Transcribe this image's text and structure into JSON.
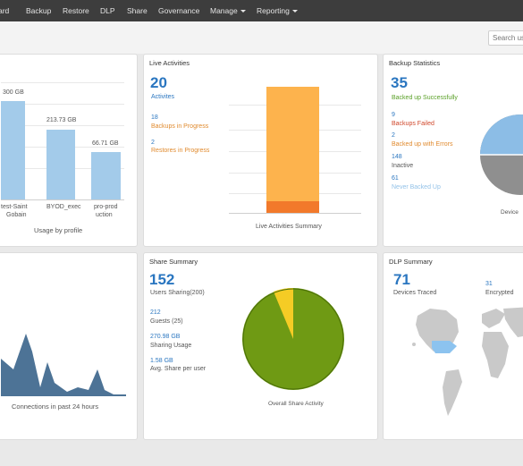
{
  "nav": {
    "items": [
      {
        "label": "ard"
      },
      {
        "label": "Backup"
      },
      {
        "label": "Restore"
      },
      {
        "label": "DLP"
      },
      {
        "label": "Share"
      },
      {
        "label": "Governance"
      },
      {
        "label": "Manage"
      },
      {
        "label": "Reporting"
      }
    ]
  },
  "search": {
    "placeholder": "Search us"
  },
  "usage": {
    "caption": "Usage by profile",
    "bars": [
      {
        "value_label": "300 GB",
        "name1": "test-Saint",
        "name2": "Gobain"
      },
      {
        "value_label": "213.73 GB",
        "name1": "BYOD_exec",
        "name2": ""
      },
      {
        "value_label": "66.71 GB",
        "name1": "pro-prod",
        "name2": "uction"
      }
    ]
  },
  "live": {
    "title": "Live Activities",
    "count": "20",
    "count_label": "Activites",
    "backups_num": "18",
    "backups_label": "Backups in Progress",
    "restores_num": "2",
    "restores_label": "Restores in Progress",
    "caption": "Live Activities Summary"
  },
  "backup": {
    "title": "Backup Statistics",
    "count": "35",
    "success_label": "Backed up Successfully",
    "failed_num": "9",
    "failed_label": "Backups Failed",
    "errors_num": "2",
    "errors_label": "Backed up with Errors",
    "inactive_num": "148",
    "inactive_label": "Inactive",
    "never_num": "61",
    "never_label": "Never Backed Up",
    "device_label": "Device"
  },
  "connections": {
    "caption": "Connections in past 24 hours"
  },
  "share": {
    "title": "Share Summary",
    "users_num": "152",
    "users_label": "Users Sharing(200)",
    "guests_num": "212",
    "guests_label": "Guests (25)",
    "usage_num": "270.98 GB",
    "usage_label": "Sharing Usage",
    "avg_num": "1.58 GB",
    "avg_label": "Avg. Share per user",
    "caption": "Overall Share Activity"
  },
  "dlp": {
    "title": "DLP Summary",
    "devices_num": "71",
    "devices_label": "Devices Traced",
    "encrypted_num": "31",
    "encrypted_label": "Encrypted"
  },
  "colors": {
    "accent_blue": "#2a76c0",
    "bar_blue": "#a3cbea",
    "orange": "#e08a2e",
    "green": "#5aa028",
    "pie_green": "#6f9a14",
    "pie_yellow": "#f5cc25",
    "area_blue": "#4d7396"
  }
}
